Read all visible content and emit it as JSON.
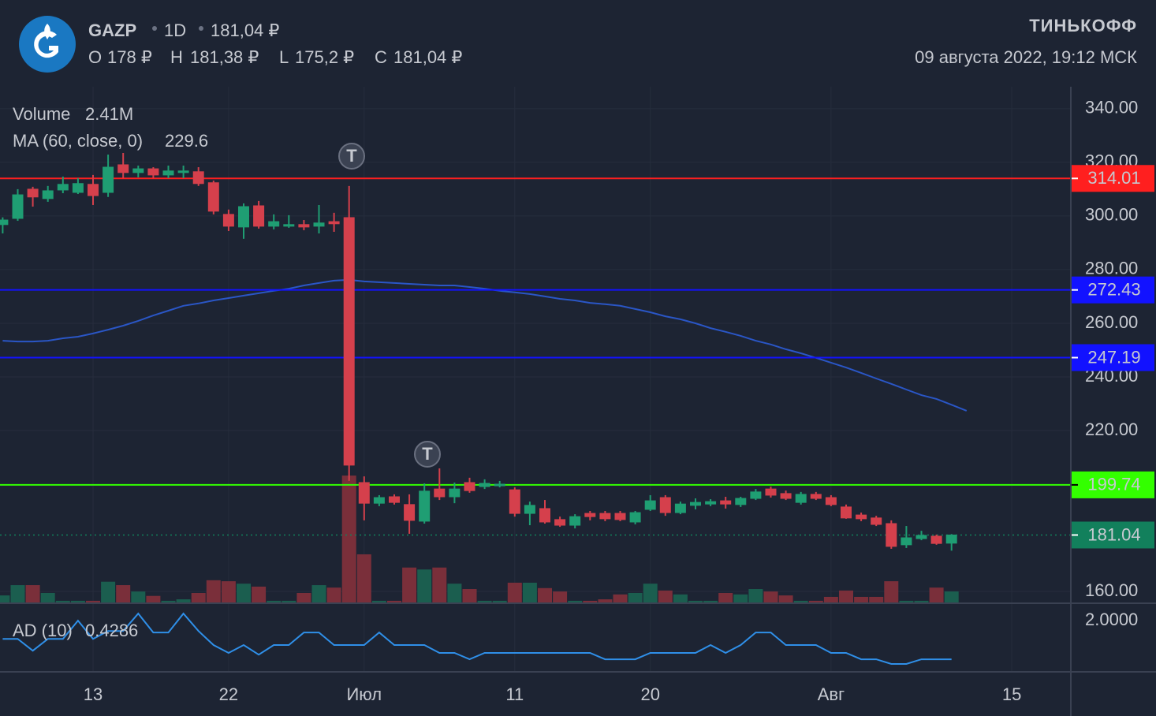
{
  "chart_data": {
    "type": "candlestick",
    "header": {
      "ticker": "GAZP",
      "interval": "1D",
      "price": "181,04 ₽",
      "ohlc": [
        {
          "key": "O",
          "text": "178 ₽"
        },
        {
          "key": "H",
          "text": "181,38 ₽"
        },
        {
          "key": "L",
          "text": "175,2 ₽"
        },
        {
          "key": "C",
          "text": "181,04 ₽"
        }
      ],
      "brand": "ТИНЬКОФФ",
      "datetime": "09 августа 2022, 19:12 МСК"
    },
    "categories": [
      null,
      null,
      null,
      null,
      null,
      null,
      "13",
      null,
      null,
      null,
      null,
      null,
      null,
      null,
      null,
      "22",
      null,
      null,
      null,
      null,
      null,
      null,
      null,
      null,
      "Июл",
      null,
      null,
      null,
      null,
      null,
      null,
      null,
      null,
      null,
      "11",
      null,
      null,
      null,
      null,
      null,
      null,
      null,
      null,
      "20",
      null,
      null,
      null,
      null,
      null,
      null,
      null,
      null,
      null,
      null,
      null,
      "Авг",
      null,
      null,
      null,
      null,
      null,
      null,
      null,
      null,
      null,
      null,
      null,
      "15"
    ],
    "open": [
      296.8,
      299.1,
      310.0,
      306.5,
      309.7,
      308.8,
      311.8,
      308.8,
      319.1,
      316.2,
      317.6,
      315.3,
      316.2,
      316.5,
      312.4,
      300.6,
      295.9,
      303.8,
      296.2,
      296.2,
      296.8,
      296.2,
      297.9,
      299.4,
      200.6,
      192.9,
      195.3,
      192.4,
      186.2,
      198.2,
      195.3,
      200.6,
      199.1,
      199.4,
      197.9,
      189.1,
      190.9,
      186.8,
      184.7,
      189.1,
      189.1,
      189.1,
      185.9,
      190.6,
      195.0,
      189.4,
      192.1,
      192.6,
      193.8,
      192.4,
      194.7,
      198.2,
      196.5,
      193.2,
      196.2,
      195.0,
      191.5,
      188.5,
      187.4,
      185.3,
      177.4,
      179.7,
      180.6,
      178,
      null,
      null,
      null,
      null
    ],
    "high": [
      299.5,
      310.0,
      310.9,
      311.2,
      314.7,
      314.1,
      315.3,
      322.9,
      323.5,
      318.8,
      318.2,
      318.8,
      318.8,
      318.2,
      313.2,
      302.4,
      304.7,
      305.6,
      300.6,
      300.3,
      298.5,
      304.1,
      301.2,
      311.2,
      202.9,
      195.9,
      196.2,
      196.2,
      200.3,
      205.9,
      200.6,
      202.4,
      201.8,
      201.2,
      198.8,
      193.5,
      194.1,
      187.9,
      188.8,
      190.0,
      190.0,
      190.0,
      190.0,
      195.9,
      195.9,
      193.5,
      194.7,
      194.4,
      195.3,
      195.3,
      198.2,
      199.1,
      197.6,
      197.1,
      197.1,
      195.9,
      192.4,
      189.4,
      188.2,
      186.5,
      184.4,
      182.6,
      181.2,
      181.38,
      null,
      null,
      null,
      null
    ],
    "low": [
      293.5,
      298.2,
      303.5,
      305.3,
      308.5,
      308.2,
      304.1,
      307.1,
      314.1,
      314.4,
      314.1,
      314.1,
      314.1,
      311.2,
      300.6,
      294.4,
      291.5,
      295.3,
      295.0,
      295.6,
      294.7,
      293.5,
      294.1,
      201.2,
      186.5,
      191.8,
      192.4,
      181.5,
      185.3,
      194.1,
      192.9,
      196.8,
      198.2,
      198.8,
      187.9,
      184.7,
      185.3,
      184.1,
      183.5,
      186.5,
      186.2,
      186.2,
      185.0,
      190.0,
      188.2,
      188.8,
      190.6,
      191.8,
      190.9,
      191.5,
      194.1,
      195.0,
      194.1,
      192.4,
      194.1,
      191.8,
      187.1,
      186.2,
      184.4,
      175.9,
      176.2,
      179.1,
      177.4,
      175.2,
      null,
      null,
      null,
      null
    ],
    "close": [
      298.5,
      307.9,
      307.1,
      309.4,
      311.8,
      312.1,
      307.6,
      318.2,
      316.2,
      317.6,
      315.3,
      316.8,
      316.8,
      312.1,
      301.8,
      296.2,
      303.5,
      296.2,
      297.9,
      296.8,
      295.9,
      297.4,
      297.1,
      207.1,
      192.9,
      195.0,
      193.2,
      186.5,
      197.4,
      195.3,
      198.2,
      197.6,
      200.3,
      200.0,
      189.1,
      192.1,
      185.9,
      184.7,
      187.9,
      187.9,
      187.1,
      186.8,
      189.4,
      193.8,
      189.4,
      192.6,
      193.2,
      193.5,
      192.6,
      194.7,
      197.1,
      195.9,
      194.7,
      196.2,
      194.7,
      192.4,
      187.4,
      187.1,
      185.0,
      176.8,
      180.0,
      180.9,
      177.9,
      181.04,
      null,
      null,
      null,
      null
    ],
    "up_color": "#1f9e73",
    "down_color": "#d5404c",
    "ylim": [
      155.6,
      348.2
    ],
    "yticks": [
      {
        "value": 160,
        "label": "160.00"
      },
      {
        "value": 220,
        "label": "220.00"
      },
      {
        "value": 240,
        "label": "240.00"
      },
      {
        "value": 260,
        "label": "260.00"
      },
      {
        "value": 280,
        "label": "280.00"
      },
      {
        "value": 300,
        "label": "300.00"
      },
      {
        "value": 320,
        "label": "320.00"
      },
      {
        "value": 340,
        "label": "340.00"
      }
    ],
    "grid": true,
    "volume": {
      "name": "Volume",
      "ylim": [
        0,
        105600000
      ],
      "up_color": "#1b5e4f",
      "down_color": "#7a2f3a",
      "label_color": "#1e8c6e",
      "values": [
        1600000,
        3700000,
        3700000,
        2100000,
        500000,
        500000,
        500000,
        4400000,
        3700000,
        2400000,
        1500000,
        500000,
        800000,
        2100000,
        4700000,
        4500000,
        4000000,
        3400000,
        500000,
        500000,
        2100000,
        3700000,
        3200000,
        26100000,
        10000000,
        500000,
        500000,
        7300000,
        6900000,
        7300000,
        4000000,
        2900000,
        500000,
        500000,
        4200000,
        4200000,
        3100000,
        2400000,
        500000,
        500000,
        800000,
        1800000,
        2100000,
        4000000,
        2600000,
        1800000,
        500000,
        500000,
        2100000,
        1800000,
        2900000,
        2400000,
        1600000,
        500000,
        500000,
        1300000,
        2600000,
        1300000,
        1300000,
        4500000,
        500000,
        500000,
        3200000,
        2410000,
        null,
        null,
        null,
        null
      ],
      "value_labels": [
        null,
        null,
        null,
        null,
        null,
        null,
        null,
        null,
        null,
        null,
        null,
        null,
        null,
        null,
        null,
        null,
        null,
        null,
        null,
        null,
        null,
        null,
        null,
        null,
        null,
        null,
        null,
        null,
        null,
        null,
        null,
        null,
        null,
        null,
        null,
        null,
        null,
        null,
        null,
        null,
        null,
        null,
        null,
        null,
        null,
        null,
        null,
        null,
        null,
        null,
        null,
        null,
        null,
        null,
        null,
        null,
        null,
        null,
        null,
        null,
        null,
        null,
        null,
        "2.41M",
        null,
        null,
        null,
        null
      ]
    },
    "ma": {
      "name": "MA (60, close, 0)",
      "color": "#2a56c6",
      "values": [
        253.5,
        253.2,
        253.2,
        253.5,
        254.4,
        255.0,
        256.2,
        257.6,
        259.1,
        260.9,
        262.9,
        264.7,
        266.5,
        267.4,
        268.5,
        269.4,
        270.3,
        271.2,
        272.1,
        272.9,
        274.1,
        275.0,
        275.9,
        276.2,
        275.6,
        275.3,
        275.0,
        274.7,
        274.4,
        274.1,
        274.1,
        273.5,
        272.9,
        272.1,
        271.5,
        270.9,
        270.0,
        269.1,
        268.5,
        267.6,
        267.1,
        266.5,
        265.3,
        264.1,
        262.6,
        261.5,
        260.0,
        258.2,
        256.8,
        255.3,
        253.5,
        252.1,
        250.3,
        248.8,
        247.1,
        245.3,
        243.5,
        241.5,
        239.4,
        237.4,
        235.3,
        233.2,
        231.8,
        229.6,
        227.3667,
        null,
        null,
        null,
        null
      ]
    },
    "levels": [
      {
        "value": 314.01,
        "color": "#ff1f1f",
        "text_color": "#ffffff"
      },
      {
        "value": 272.43,
        "color": "#1212ff",
        "text_color": "#ffffff"
      },
      {
        "value": 247.19,
        "color": "#1212ff",
        "text_color": "#ffffff"
      },
      {
        "value": 199.74,
        "color": "#33ff00",
        "text_color": "#000000"
      }
    ],
    "last_price_color": "#12805c",
    "events": [
      "T",
      "T"
    ],
    "ad": {
      "type": "line",
      "name": "AD (10)",
      "color": "#2f8fe8",
      "ylim": [
        -0.08,
        2.71
      ],
      "yticks": [
        {
          "value": 2,
          "label": "2.0000"
        }
      ],
      "values": [
        1.26,
        1.26,
        0.78,
        1.26,
        1.26,
        2.0,
        1.26,
        1.58,
        1.58,
        2.29,
        1.52,
        1.52,
        2.29,
        1.58,
        1.01,
        0.69,
        1.01,
        0.62,
        1.01,
        1.01,
        1.52,
        1.52,
        1.01,
        1.01,
        1.01,
        1.52,
        1.01,
        1.01,
        1.01,
        0.69,
        0.69,
        0.43,
        0.69,
        0.69,
        0.69,
        0.69,
        0.69,
        0.69,
        0.69,
        0.69,
        0.43,
        0.43,
        0.43,
        0.69,
        0.69,
        0.69,
        0.69,
        1.01,
        0.69,
        1.01,
        1.52,
        1.52,
        1.01,
        1.01,
        1.01,
        0.69,
        0.69,
        0.43,
        0.43,
        0.24,
        0.24,
        0.43,
        0.43,
        0.4286,
        null,
        null,
        null,
        null
      ]
    }
  }
}
